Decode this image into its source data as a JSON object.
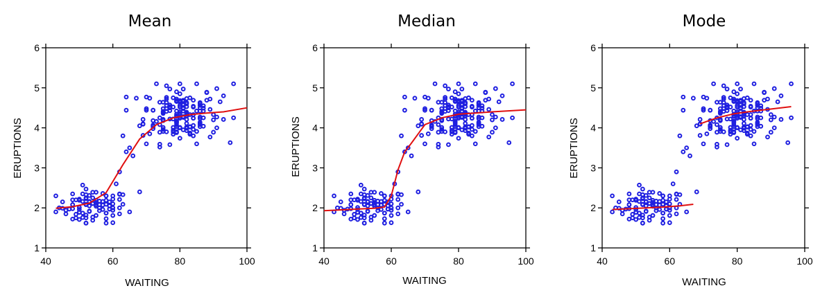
{
  "colors": {
    "points": "#1f1fe0",
    "fit": "#e01010",
    "axes": "#000000"
  },
  "chart_data": [
    {
      "type": "scatter",
      "title": "Mean",
      "xlabel": "WAITING",
      "ylabel": "ERUPTIONS",
      "xlim": [
        40,
        100
      ],
      "ylim": [
        1,
        6
      ],
      "xticks": [
        "40",
        "60",
        "80",
        "100"
      ],
      "yticks": [
        "1",
        "2",
        "3",
        "4",
        "5",
        "6"
      ],
      "grid": false,
      "series": [
        {
          "kind": "points",
          "x": [],
          "y": []
        },
        {
          "kind": "smooth-line",
          "x": [
            43,
            48,
            53,
            58,
            63,
            68,
            73,
            78,
            83,
            88,
            93,
            100
          ],
          "y": [
            1.99,
            2.03,
            2.12,
            2.38,
            3.08,
            3.72,
            4.08,
            4.25,
            4.33,
            4.37,
            4.4,
            4.5
          ]
        }
      ]
    },
    {
      "type": "scatter",
      "title": "Median",
      "xlabel": "WAITING",
      "ylabel": "ERUPTIONS",
      "xlim": [
        40,
        100
      ],
      "ylim": [
        1,
        6
      ],
      "xticks": [
        "40",
        "60",
        "80",
        "100"
      ],
      "yticks": [
        "1",
        "2",
        "3",
        "4",
        "5",
        "6"
      ],
      "grid": false,
      "series": [
        {
          "kind": "points",
          "x": [],
          "y": []
        },
        {
          "kind": "smooth-line",
          "x": [
            40,
            45,
            50,
            55,
            58,
            60,
            62,
            64,
            66,
            68,
            70,
            75,
            80,
            85,
            90,
            100
          ],
          "y": [
            1.93,
            1.95,
            1.97,
            1.99,
            2.02,
            2.3,
            2.95,
            3.4,
            3.62,
            3.85,
            4.08,
            4.25,
            4.34,
            4.37,
            4.4,
            4.45
          ]
        }
      ]
    },
    {
      "type": "scatter",
      "title": "Mode",
      "xlabel": "WAITING",
      "ylabel": "ERUPTIONS",
      "xlim": [
        40,
        100
      ],
      "ylim": [
        1,
        6
      ],
      "xticks": [
        "40",
        "60",
        "80",
        "100"
      ],
      "yticks": [
        "1",
        "2",
        "3",
        "4",
        "5",
        "6"
      ],
      "grid": false,
      "series": [
        {
          "kind": "points",
          "x": [],
          "y": []
        },
        {
          "kind": "smooth-line",
          "x": [
            43,
            48,
            53,
            58,
            63,
            67
          ],
          "y": [
            1.96,
            1.98,
            2.0,
            2.02,
            2.05,
            2.09
          ]
        },
        {
          "kind": "smooth-line",
          "x": [
            69,
            74,
            79,
            84,
            89,
            96
          ],
          "y": [
            4.1,
            4.25,
            4.35,
            4.41,
            4.46,
            4.53
          ]
        }
      ]
    }
  ]
}
